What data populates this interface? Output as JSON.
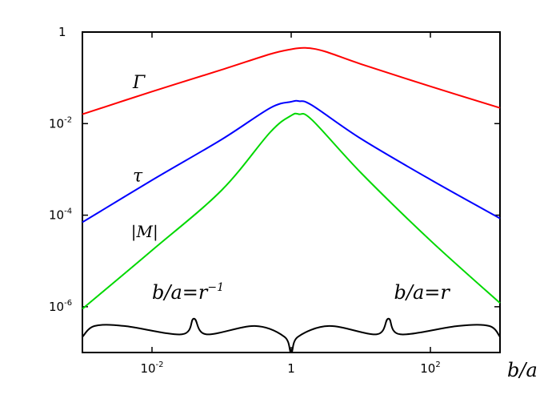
{
  "chart_data": {
    "type": "line",
    "xscale": "log",
    "yscale": "log",
    "xlim": [
      0.001,
      1000
    ],
    "ylim": [
      1e-07,
      1
    ],
    "xlabel": "b/a",
    "ylabel": "",
    "grid": false,
    "x_ticks": [
      {
        "value": 0.01,
        "base": "10",
        "exp": "-2"
      },
      {
        "value": 1,
        "base": "1",
        "exp": ""
      },
      {
        "value": 100,
        "base": "10",
        "exp": "2"
      }
    ],
    "y_ticks": [
      {
        "value": 1,
        "base": "1",
        "exp": ""
      },
      {
        "value": 0.01,
        "base": "10",
        "exp": "-2"
      },
      {
        "value": 0.0001,
        "base": "10",
        "exp": "-4"
      },
      {
        "value": 1e-06,
        "base": "10",
        "exp": "-6"
      }
    ],
    "series": [
      {
        "name": "Γ",
        "color": "#ff0000",
        "points": [
          [
            0.001,
            0.016
          ],
          [
            0.01,
            0.05
          ],
          [
            0.1,
            0.15
          ],
          [
            0.5,
            0.33
          ],
          [
            1,
            0.42
          ],
          [
            1.6,
            0.45
          ],
          [
            3,
            0.38
          ],
          [
            10,
            0.2
          ],
          [
            100,
            0.065
          ],
          [
            1000,
            0.022
          ]
        ]
      },
      {
        "name": "τ",
        "color": "#0000ff",
        "points": [
          [
            0.001,
            7e-05
          ],
          [
            0.01,
            0.00058
          ],
          [
            0.1,
            0.0045
          ],
          [
            0.5,
            0.022
          ],
          [
            1,
            0.03
          ],
          [
            1.3,
            0.031
          ],
          [
            2,
            0.025
          ],
          [
            10,
            0.0047
          ],
          [
            100,
            0.0006
          ],
          [
            1000,
            8.5e-05
          ]
        ]
      },
      {
        "name": "|M|",
        "color": "#00d800",
        "points": [
          [
            0.001,
            9e-07
          ],
          [
            0.01,
            1.7e-05
          ],
          [
            0.1,
            0.00035
          ],
          [
            0.5,
            0.0065
          ],
          [
            1,
            0.015
          ],
          [
            1.3,
            0.016
          ],
          [
            2,
            0.012
          ],
          [
            10,
            0.00085
          ],
          [
            100,
            2.8e-05
          ],
          [
            1000,
            1.2e-06
          ]
        ]
      }
    ],
    "curve_labels": [
      {
        "series": 0,
        "text": "Γ",
        "x": 0.0053,
        "y": 0.06
      },
      {
        "series": 1,
        "text": "τ",
        "x": 0.0053,
        "y": 0.00055
      },
      {
        "series": 2,
        "text": "|M|",
        "x": 0.005,
        "y": 3.3e-05
      }
    ],
    "annotations": [
      {
        "text_main": "b/a=r",
        "text_sup": "−1",
        "x": 0.01,
        "y": 1.5e-06
      },
      {
        "text_main": "b/a=r",
        "text_sup": "",
        "x": 30,
        "y": 1.5e-06
      }
    ],
    "reference_curve": {
      "color": "#000000",
      "description_points": [
        [
          0.001,
          2.2e-07
        ],
        [
          0.0015,
          3.8e-07
        ],
        [
          0.004,
          3.8e-07
        ],
        [
          0.027,
          2.5e-07
        ],
        [
          0.04,
          5.5e-07
        ],
        [
          0.06,
          2.5e-07
        ],
        [
          0.3,
          3.8e-07
        ],
        [
          0.8,
          2.2e-07
        ],
        [
          1,
          1e-07
        ],
        [
          1.25,
          2.2e-07
        ],
        [
          3.5,
          3.8e-07
        ],
        [
          17,
          2.5e-07
        ],
        [
          25,
          5.5e-07
        ],
        [
          37,
          2.5e-07
        ],
        [
          250,
          3.8e-07
        ],
        [
          700,
          3.8e-07
        ],
        [
          1000,
          2.2e-07
        ]
      ]
    }
  }
}
